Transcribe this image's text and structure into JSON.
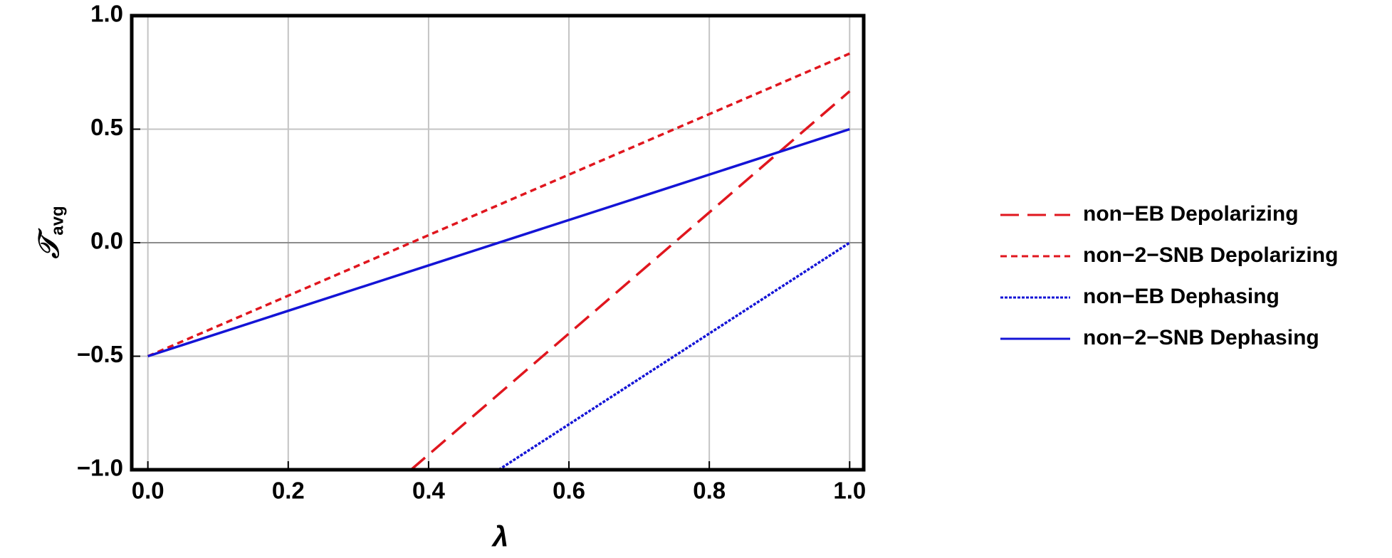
{
  "chart_data": {
    "type": "line",
    "x_label": "λ",
    "y_label": "𝒯",
    "y_label_sub": "avg",
    "xlim": [
      -0.023,
      1.02
    ],
    "ylim": [
      -1,
      1
    ],
    "xticks": [
      {
        "value": 0,
        "label": "0.0"
      },
      0.2,
      0.4,
      0.6,
      0.8,
      {
        "value": 1,
        "label": "1.0"
      }
    ],
    "yticks": [
      {
        "value": -1,
        "label": "−1.0"
      },
      {
        "value": -0.5,
        "label": "−0.5"
      },
      {
        "value": 0,
        "label": "0.0"
      },
      0.5,
      {
        "value": 1,
        "label": "1.0"
      }
    ],
    "grid": true,
    "legend": "right",
    "series": [
      {
        "name": "non−EB Depolarizing",
        "color": "#e0161e",
        "dash": "long-dash",
        "x": [
          0.375,
          1
        ],
        "values": [
          -1,
          0.667
        ]
      },
      {
        "name": "non−2−SNB Depolarizing",
        "color": "#e0161e",
        "dash": "short-dash",
        "x": [
          0,
          1
        ],
        "values": [
          -0.5,
          0.833
        ]
      },
      {
        "name": "non−EB Dephasing",
        "color": "#1414d6",
        "dash": "dotted",
        "x": [
          0.5,
          1
        ],
        "values": [
          -1,
          0
        ]
      },
      {
        "name": "non−2−SNB Dephasing",
        "color": "#1414d6",
        "dash": "solid",
        "x": [
          0,
          1
        ],
        "values": [
          -0.5,
          0.5
        ]
      }
    ]
  }
}
